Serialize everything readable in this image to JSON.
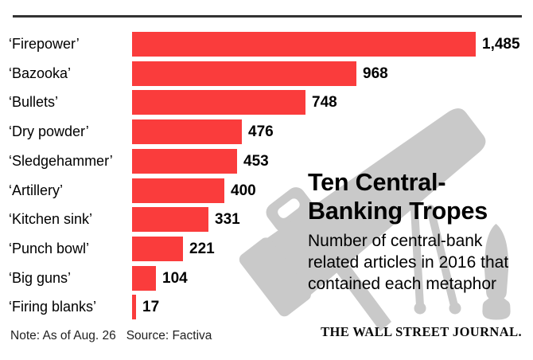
{
  "header": {
    "rule_color": "#333333"
  },
  "chart_data": {
    "type": "bar",
    "orientation": "horizontal",
    "title": "Ten Central-Banking Tropes",
    "subtitle": "Number of central-bank related articles in 2016 that contained each metaphor",
    "categories": [
      "‘Firepower’",
      "‘Bazooka’",
      "‘Bullets’",
      "‘Dry powder’",
      "‘Sledgehammer’",
      "‘Artillery’",
      "‘Kitchen sink’",
      "‘Punch bowl’",
      "‘Big guns’",
      "‘Firing blanks’"
    ],
    "values": [
      1485,
      968,
      748,
      476,
      453,
      400,
      331,
      221,
      104,
      17
    ],
    "value_labels": [
      "1,485",
      "968",
      "748",
      "476",
      "453",
      "400",
      "331",
      "221",
      "104",
      "17"
    ],
    "xlim": [
      0,
      1485
    ],
    "bar_color": "#fa3c3c",
    "gridlines": false,
    "legend": "none",
    "value_label_position": "right-of-bar"
  },
  "panel": {
    "title_line1": "Ten Central-",
    "title_line2": "Banking Tropes",
    "subtitle_line1": "Number of central-bank",
    "subtitle_line2": "related articles in 2016 that",
    "subtitle_line3": "contained each metaphor"
  },
  "footer": {
    "note": "Note: As of Aug. 26",
    "source": "Source: Factiva",
    "brand": "THE WALL STREET JOURNAL."
  },
  "illustration": {
    "name": "bazooka-silhouette",
    "color": "#c9c9c9"
  }
}
